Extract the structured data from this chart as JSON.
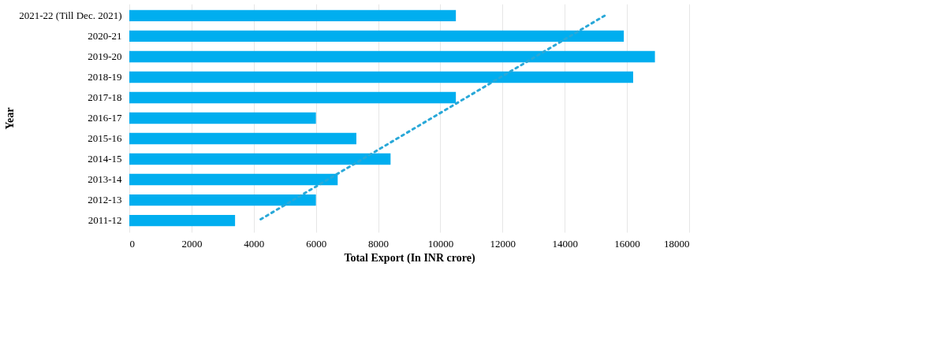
{
  "chart_data": {
    "type": "bar",
    "orientation": "horizontal",
    "xlabel": "Total Export (In INR crore)",
    "ylabel": "Year",
    "categories": [
      "2021-22 (Till Dec. 2021)",
      "2020-21",
      "2019-20",
      "2018-19",
      "2017-18",
      "2016-17",
      "2015-16",
      "2014-15",
      "2013-14",
      "2012-13",
      "2011-12"
    ],
    "series": [
      {
        "color": "#00aeef",
        "values": [
          10500,
          15900,
          16900,
          16200,
          10500,
          6000,
          7300,
          8400,
          6700,
          6000,
          3400
        ]
      },
      {
        "type": "line",
        "color": "#29a8d8",
        "line_style": "dotted",
        "values": [
          15280,
          14170,
          13060,
          11940,
          10830,
          9720,
          8610,
          7500,
          6380,
          5270,
          4160
        ]
      }
    ],
    "xlim": [
      0,
      18000
    ],
    "xticks": [
      0,
      2000,
      4000,
      6000,
      8000,
      10000,
      12000,
      14000,
      16000,
      18000
    ],
    "grid": "x"
  }
}
